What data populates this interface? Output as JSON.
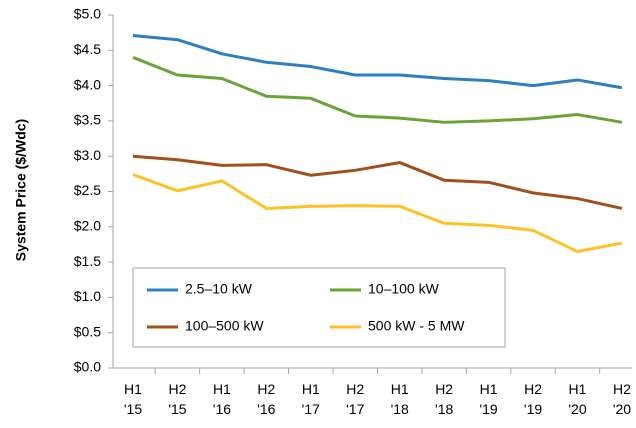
{
  "chart_data": {
    "type": "line",
    "y_label": "System Price ($/Wdc)",
    "categories": [
      "H1 '15",
      "H2 '15",
      "H1 '16",
      "H2 '16",
      "H1 '17",
      "H2 '17",
      "H1 '18",
      "H2 '18",
      "H1 '19",
      "H2 '19",
      "H1 '20",
      "H2 '20"
    ],
    "series": [
      {
        "name": "2.5–10 kW",
        "color": "#2e7fc1",
        "values": [
          4.71,
          4.65,
          4.45,
          4.33,
          4.27,
          4.15,
          4.15,
          4.1,
          4.07,
          4.0,
          4.08,
          3.97
        ]
      },
      {
        "name": "10–100 kW",
        "color": "#6aa339",
        "values": [
          4.4,
          4.15,
          4.1,
          3.85,
          3.82,
          3.57,
          3.54,
          3.48,
          3.5,
          3.53,
          3.59,
          3.48
        ]
      },
      {
        "name": "100–500 kW",
        "color": "#a0501a",
        "values": [
          3.0,
          2.95,
          2.87,
          2.88,
          2.73,
          2.8,
          2.91,
          2.66,
          2.63,
          2.48,
          2.4,
          2.26
        ]
      },
      {
        "name": "500 kW - 5 MW",
        "color": "#ffc125",
        "values": [
          2.74,
          2.51,
          2.65,
          2.26,
          2.29,
          2.3,
          2.29,
          2.05,
          2.02,
          1.95,
          1.65,
          1.77
        ]
      }
    ],
    "ylim": [
      0,
      5
    ],
    "yticks": [
      {
        "value": 0,
        "label": "$0.0"
      },
      {
        "value": 0.5,
        "label": "$0.5"
      },
      {
        "value": 1,
        "label": "$1.0"
      },
      {
        "value": 1.5,
        "label": "$1.5"
      },
      {
        "value": 2,
        "label": "$2.0"
      },
      {
        "value": 2.5,
        "label": "$2.5"
      },
      {
        "value": 3,
        "label": "$3.0"
      },
      {
        "value": 3.5,
        "label": "$3.5"
      },
      {
        "value": 4,
        "label": "$4.0"
      },
      {
        "value": 4.5,
        "label": "$4.5"
      },
      {
        "value": 5,
        "label": "$5.0"
      }
    ],
    "grid": false,
    "legend": "lower left"
  }
}
